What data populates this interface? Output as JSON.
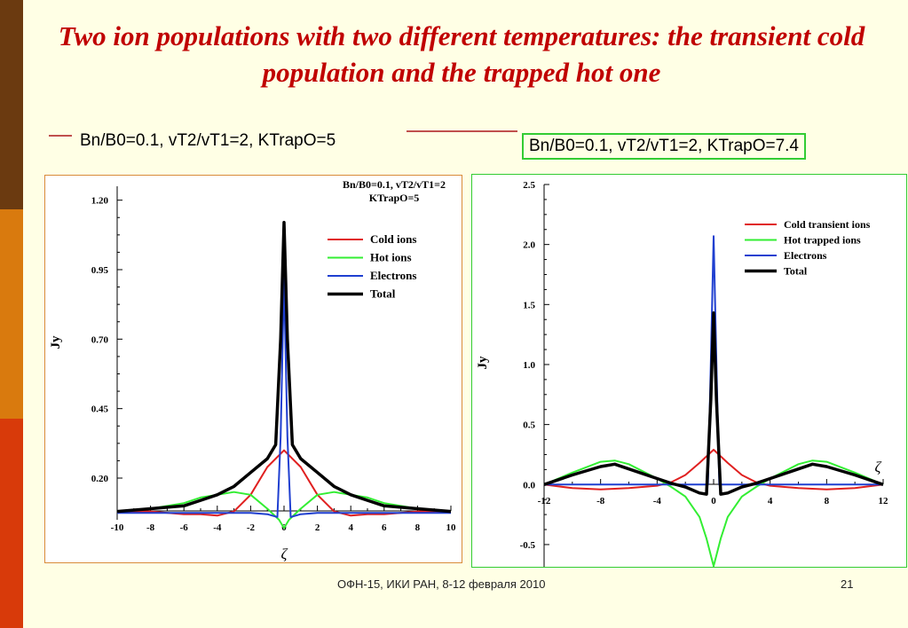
{
  "slide": {
    "title": "Two ion populations with two different temperatures: the transient cold population and the trapped hot one",
    "caption_left": "Bn/B0=0.1, vT2/vT1=2, KTrapO=5",
    "caption_right": "Bn/B0=0.1, vT2/vT1=2, KTrapO=7.4",
    "footer": "ОФН-15, ИКИ РАН, 8-12 февраля 2010",
    "page_number": "21",
    "colors": {
      "title": "#C00000",
      "sidebar": [
        "#6B3A10",
        "#D97A0E",
        "#D83A0A"
      ],
      "left_panel_border": "#D98C3A",
      "right_panel_border": "#33CC33"
    }
  },
  "chart_data": [
    {
      "type": "line",
      "title": "Bn/B0=0.1, vT2/vT1=2\nKTrapO=5",
      "xlabel": "ζ",
      "ylabel": "Jy",
      "xlim": [
        -10,
        10
      ],
      "ylim": [
        0.05,
        1.25
      ],
      "xticks": [
        -10,
        -8,
        -6,
        -4,
        -2,
        0,
        2,
        4,
        6,
        8,
        10
      ],
      "yticks": [
        0.2,
        0.45,
        0.7,
        0.95,
        1.2
      ],
      "ytick_labels": [
        "0.20",
        "0.45",
        "0.70",
        "0.95",
        "1.20"
      ],
      "legend_position": "top-right",
      "series": [
        {
          "name": "Cold ions",
          "color": "#E02020",
          "x": [
            -10,
            -8,
            -6,
            -5,
            -4,
            -3,
            -2,
            -1,
            0,
            1,
            2,
            3,
            4,
            5,
            6,
            8,
            10
          ],
          "y": [
            0.08,
            0.08,
            0.07,
            0.07,
            0.065,
            0.08,
            0.14,
            0.24,
            0.3,
            0.24,
            0.14,
            0.08,
            0.065,
            0.07,
            0.07,
            0.08,
            0.08
          ]
        },
        {
          "name": "Hot ions",
          "color": "#33EE33",
          "x": [
            -10,
            -8,
            -6,
            -5,
            -4,
            -3,
            -2,
            -1,
            -0.3,
            0,
            0.3,
            1,
            2,
            3,
            4,
            5,
            6,
            8,
            10
          ],
          "y": [
            0.08,
            0.09,
            0.11,
            0.13,
            0.14,
            0.15,
            0.14,
            0.09,
            0.05,
            0.02,
            0.05,
            0.09,
            0.14,
            0.15,
            0.14,
            0.13,
            0.11,
            0.09,
            0.08
          ]
        },
        {
          "name": "Electrons",
          "color": "#1F3FD0",
          "x": [
            -10,
            -2,
            -1,
            -0.4,
            -0.2,
            0,
            0.2,
            0.4,
            1,
            2,
            10
          ],
          "y": [
            0.075,
            0.075,
            0.07,
            0.06,
            0.35,
            0.92,
            0.35,
            0.06,
            0.07,
            0.075,
            0.075
          ]
        },
        {
          "name": "Total",
          "color": "#000000",
          "x": [
            -10,
            -8,
            -6,
            -5,
            -4,
            -3,
            -2,
            -1,
            -0.5,
            -0.2,
            0,
            0.2,
            0.5,
            1,
            2,
            3,
            4,
            5,
            6,
            8,
            10
          ],
          "y": [
            0.08,
            0.09,
            0.1,
            0.12,
            0.14,
            0.17,
            0.22,
            0.27,
            0.32,
            0.7,
            1.12,
            0.7,
            0.32,
            0.27,
            0.22,
            0.17,
            0.14,
            0.12,
            0.1,
            0.09,
            0.08
          ]
        }
      ]
    },
    {
      "type": "line",
      "title": "",
      "xlabel": "ζ",
      "ylabel": "Jy",
      "xlim": [
        -12,
        12
      ],
      "ylim": [
        -0.7,
        2.5
      ],
      "xticks": [
        -12,
        -8,
        -4,
        0,
        4,
        8,
        12
      ],
      "yticks": [
        -0.5,
        0.0,
        0.5,
        1.0,
        1.5,
        2.0,
        2.5
      ],
      "ytick_labels": [
        "-0.5",
        "0.0",
        "0.5",
        "1.0",
        "1.5",
        "2.0",
        "2.5"
      ],
      "legend_position": "top-right",
      "series": [
        {
          "name": "Cold transient ions",
          "color": "#E02020",
          "x": [
            -12,
            -10,
            -8,
            -6,
            -4,
            -3,
            -2,
            -1,
            0,
            1,
            2,
            3,
            4,
            6,
            8,
            10,
            12
          ],
          "y": [
            0.0,
            -0.03,
            -0.04,
            -0.03,
            -0.01,
            0.02,
            0.08,
            0.18,
            0.29,
            0.18,
            0.08,
            0.02,
            -0.01,
            -0.03,
            -0.04,
            -0.03,
            0.0
          ]
        },
        {
          "name": "Hot trapped ions",
          "color": "#33EE33",
          "x": [
            -12,
            -10,
            -8,
            -7,
            -6,
            -4,
            -3,
            -2,
            -1,
            -0.5,
            0,
            0.5,
            1,
            2,
            3,
            4,
            6,
            7,
            8,
            10,
            12
          ],
          "y": [
            0.0,
            0.1,
            0.19,
            0.2,
            0.17,
            0.05,
            -0.02,
            -0.1,
            -0.27,
            -0.45,
            -0.68,
            -0.45,
            -0.27,
            -0.1,
            -0.02,
            0.05,
            0.17,
            0.2,
            0.19,
            0.1,
            0.0
          ]
        },
        {
          "name": "Electrons",
          "color": "#1F3FD0",
          "x": [
            -12,
            -1,
            -0.4,
            -0.2,
            0,
            0.2,
            0.4,
            1,
            12
          ],
          "y": [
            0.0,
            0.0,
            0.0,
            1.0,
            2.07,
            1.0,
            0.0,
            0.0,
            0.0
          ]
        },
        {
          "name": "Total",
          "color": "#000000",
          "x": [
            -12,
            -10,
            -8,
            -7,
            -6,
            -4,
            -3,
            -2,
            -1,
            -0.5,
            -0.2,
            0,
            0.2,
            0.5,
            1,
            2,
            3,
            4,
            6,
            7,
            8,
            10,
            12
          ],
          "y": [
            0.0,
            0.08,
            0.15,
            0.17,
            0.13,
            0.05,
            0.01,
            -0.02,
            -0.07,
            -0.08,
            0.7,
            1.43,
            0.7,
            -0.08,
            -0.07,
            -0.02,
            0.01,
            0.05,
            0.13,
            0.17,
            0.15,
            0.08,
            0.0
          ]
        }
      ]
    }
  ]
}
